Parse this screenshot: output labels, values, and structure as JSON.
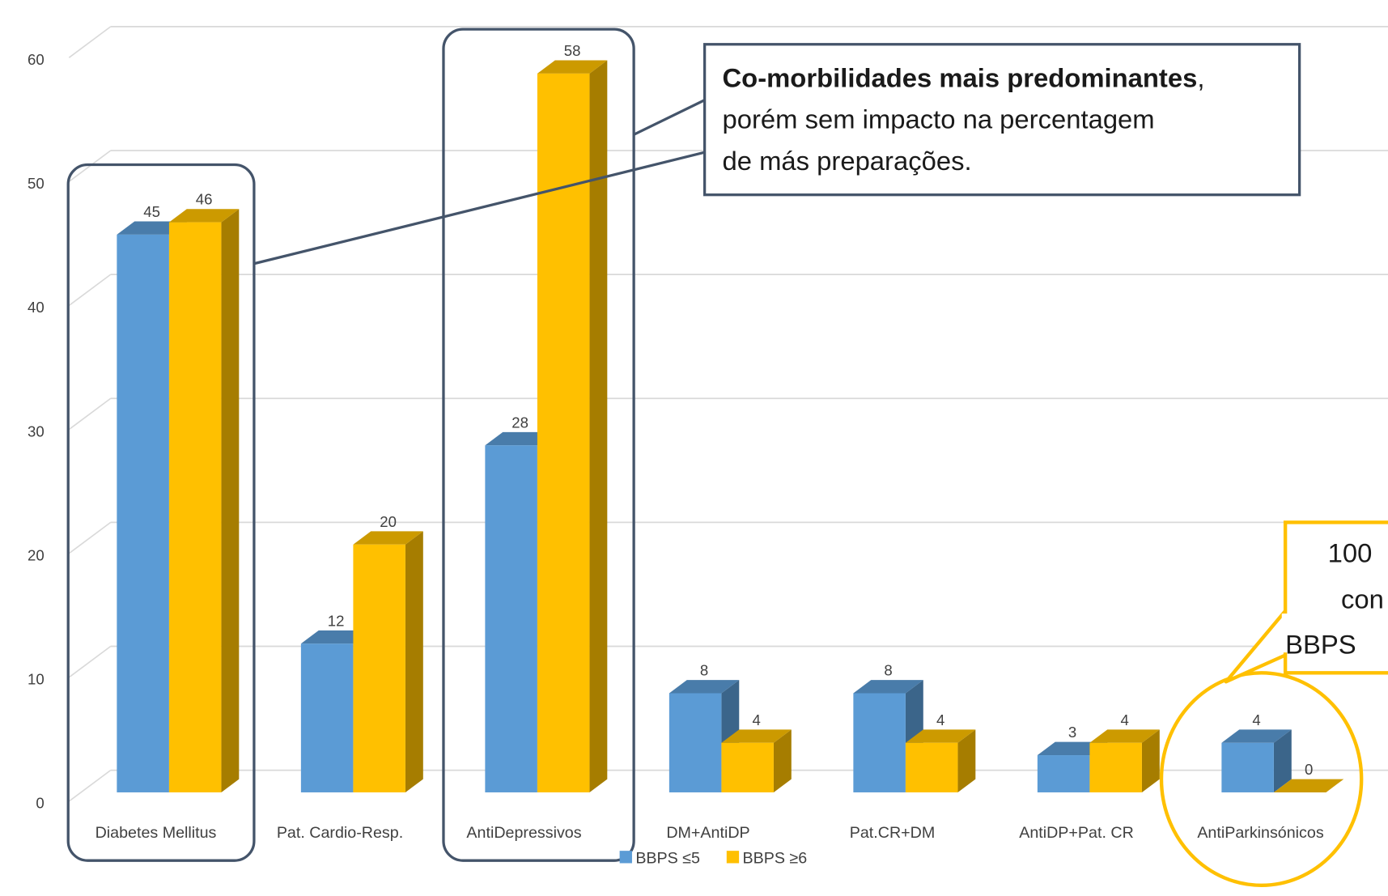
{
  "chart_data": {
    "type": "bar3d",
    "categories": [
      "Diabetes Mellitus",
      "Pat. Cardio-Resp.",
      "AntiDepressivos",
      "DM+AntiDP",
      "Pat.CR+DM",
      "AntiDP+Pat. CR",
      "AntiParkinsónicos"
    ],
    "series": [
      {
        "name": "BBPS ≤5",
        "color": "#5b9bd5",
        "values": [
          45,
          12,
          28,
          8,
          8,
          3,
          4
        ]
      },
      {
        "name": "BBPS ≥6",
        "color": "#ffc000",
        "values": [
          46,
          20,
          58,
          4,
          4,
          4,
          0
        ]
      }
    ],
    "ylim": [
      0,
      60
    ],
    "yticks": [
      0,
      10,
      20,
      30,
      40,
      50,
      60
    ],
    "grid": true,
    "legend": "bottom",
    "annotations": [
      {
        "bold": "Co-morbilidades mais predominantes",
        "punct": ",",
        "lines": [
          "porém sem  impacto na percentagem",
          "de más preparações."
        ]
      },
      {
        "lines": [
          "100",
          "con",
          "BBPS"
        ]
      }
    ]
  }
}
